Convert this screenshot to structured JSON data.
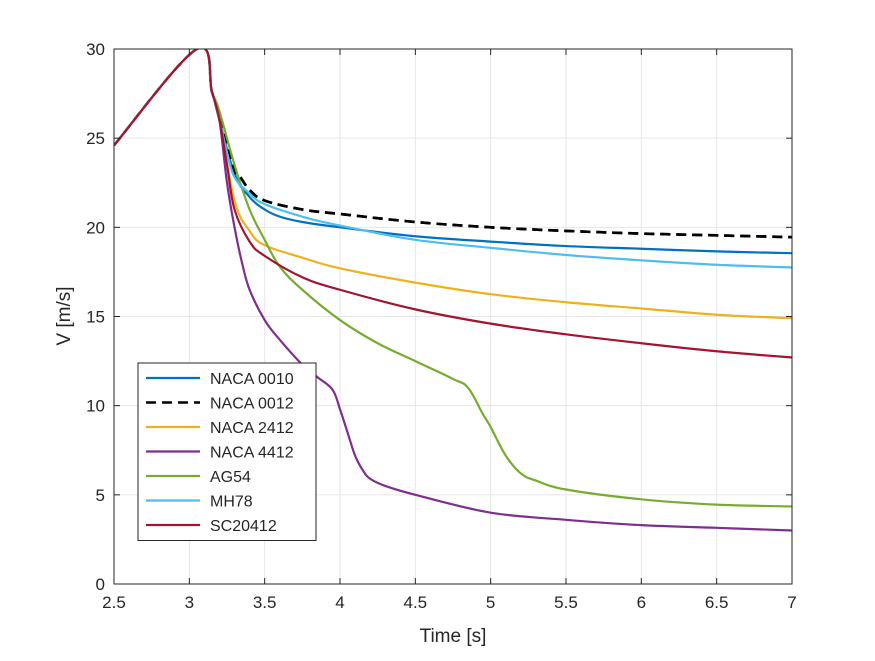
{
  "chart_data": {
    "type": "line",
    "xlabel": "Time [s]",
    "ylabel": "V [m/s]",
    "xlim": [
      2.5,
      7
    ],
    "ylim": [
      0,
      30
    ],
    "xticks": [
      "2.5",
      "3",
      "3.5",
      "4",
      "4.5",
      "5",
      "5.5",
      "6",
      "6.5",
      "7"
    ],
    "yticks": [
      "0",
      "5",
      "10",
      "15",
      "20",
      "25",
      "30"
    ],
    "grid": true,
    "legend_position": "lower-left",
    "series": [
      {
        "name": "NACA 0010",
        "color": "#0072BD",
        "dash": false,
        "points": [
          [
            2.5,
            24.6
          ],
          [
            3.05,
            30
          ],
          [
            3.15,
            27.6
          ],
          [
            3.2,
            26.0
          ],
          [
            3.3,
            23.0
          ],
          [
            3.4,
            21.7
          ],
          [
            3.5,
            21.0
          ],
          [
            3.6,
            20.6
          ],
          [
            3.75,
            20.3
          ],
          [
            4.0,
            20.0
          ],
          [
            4.5,
            19.5
          ],
          [
            5.0,
            19.2
          ],
          [
            5.5,
            18.95
          ],
          [
            6.0,
            18.8
          ],
          [
            6.5,
            18.65
          ],
          [
            7.0,
            18.55
          ]
        ]
      },
      {
        "name": "NACA 0012",
        "color": "#000000",
        "dash": true,
        "points": [
          [
            2.5,
            24.6
          ],
          [
            3.05,
            30
          ],
          [
            3.15,
            27.6
          ],
          [
            3.2,
            26.1
          ],
          [
            3.3,
            23.2
          ],
          [
            3.34,
            22.8
          ],
          [
            3.4,
            22.1
          ],
          [
            3.5,
            21.5
          ],
          [
            3.75,
            21.0
          ],
          [
            4.0,
            20.75
          ],
          [
            4.5,
            20.3
          ],
          [
            5.0,
            20.0
          ],
          [
            5.5,
            19.8
          ],
          [
            6.0,
            19.65
          ],
          [
            6.5,
            19.55
          ],
          [
            7.0,
            19.45
          ]
        ]
      },
      {
        "name": "NACA 2412",
        "color": "#EDB120",
        "dash": false,
        "points": [
          [
            2.5,
            24.6
          ],
          [
            3.05,
            30
          ],
          [
            3.15,
            27.6
          ],
          [
            3.2,
            26.0
          ],
          [
            3.3,
            21.5
          ],
          [
            3.4,
            19.8
          ],
          [
            3.5,
            19.0
          ],
          [
            3.75,
            18.3
          ],
          [
            4.0,
            17.7
          ],
          [
            4.5,
            16.9
          ],
          [
            5.0,
            16.25
          ],
          [
            5.5,
            15.8
          ],
          [
            6.0,
            15.45
          ],
          [
            6.5,
            15.1
          ],
          [
            7.0,
            14.9
          ]
        ]
      },
      {
        "name": "NACA 4412",
        "color": "#7E2F8E",
        "dash": false,
        "points": [
          [
            2.5,
            24.6
          ],
          [
            3.05,
            30
          ],
          [
            3.15,
            27.6
          ],
          [
            3.2,
            26.0
          ],
          [
            3.25,
            22.5
          ],
          [
            3.3,
            20.0
          ],
          [
            3.35,
            18.0
          ],
          [
            3.4,
            16.5
          ],
          [
            3.5,
            14.8
          ],
          [
            3.6,
            13.7
          ],
          [
            3.75,
            12.3
          ],
          [
            3.85,
            11.6
          ],
          [
            3.95,
            10.9
          ],
          [
            4.0,
            9.8
          ],
          [
            4.05,
            8.5
          ],
          [
            4.1,
            7.2
          ],
          [
            4.15,
            6.4
          ],
          [
            4.2,
            5.9
          ],
          [
            4.3,
            5.5
          ],
          [
            4.5,
            5.0
          ],
          [
            5.0,
            4.0
          ],
          [
            5.5,
            3.6
          ],
          [
            6.0,
            3.3
          ],
          [
            6.5,
            3.15
          ],
          [
            7.0,
            3.0
          ]
        ]
      },
      {
        "name": "AG54",
        "color": "#77AC30",
        "dash": false,
        "points": [
          [
            2.5,
            24.6
          ],
          [
            3.05,
            30
          ],
          [
            3.15,
            27.6
          ],
          [
            3.2,
            26.5
          ],
          [
            3.3,
            23.5
          ],
          [
            3.4,
            21.0
          ],
          [
            3.5,
            19.3
          ],
          [
            3.6,
            17.8
          ],
          [
            3.75,
            16.5
          ],
          [
            4.0,
            14.8
          ],
          [
            4.25,
            13.5
          ],
          [
            4.5,
            12.5
          ],
          [
            4.75,
            11.5
          ],
          [
            4.85,
            11.0
          ],
          [
            4.95,
            9.5
          ],
          [
            5.0,
            8.8
          ],
          [
            5.1,
            7.2
          ],
          [
            5.2,
            6.2
          ],
          [
            5.3,
            5.8
          ],
          [
            5.5,
            5.3
          ],
          [
            6.0,
            4.75
          ],
          [
            6.5,
            4.45
          ],
          [
            7.0,
            4.35
          ]
        ]
      },
      {
        "name": "MH78",
        "color": "#4DBEEE",
        "dash": false,
        "points": [
          [
            2.5,
            24.6
          ],
          [
            3.05,
            30
          ],
          [
            3.15,
            27.6
          ],
          [
            3.2,
            26.0
          ],
          [
            3.25,
            24.2
          ],
          [
            3.3,
            22.8
          ],
          [
            3.4,
            21.9
          ],
          [
            3.5,
            21.3
          ],
          [
            3.75,
            20.6
          ],
          [
            4.0,
            20.1
          ],
          [
            4.5,
            19.3
          ],
          [
            5.0,
            18.85
          ],
          [
            5.5,
            18.45
          ],
          [
            6.0,
            18.15
          ],
          [
            6.5,
            17.9
          ],
          [
            7.0,
            17.75
          ]
        ]
      },
      {
        "name": "SC20412",
        "color": "#A2142F",
        "dash": false,
        "points": [
          [
            2.5,
            24.6
          ],
          [
            3.05,
            30
          ],
          [
            3.15,
            27.6
          ],
          [
            3.2,
            26.0
          ],
          [
            3.25,
            23.5
          ],
          [
            3.3,
            21.0
          ],
          [
            3.4,
            19.2
          ],
          [
            3.5,
            18.4
          ],
          [
            3.75,
            17.2
          ],
          [
            4.0,
            16.5
          ],
          [
            4.5,
            15.4
          ],
          [
            5.0,
            14.6
          ],
          [
            5.5,
            14.0
          ],
          [
            6.0,
            13.5
          ],
          [
            6.5,
            13.05
          ],
          [
            7.0,
            12.7
          ]
        ]
      }
    ]
  }
}
